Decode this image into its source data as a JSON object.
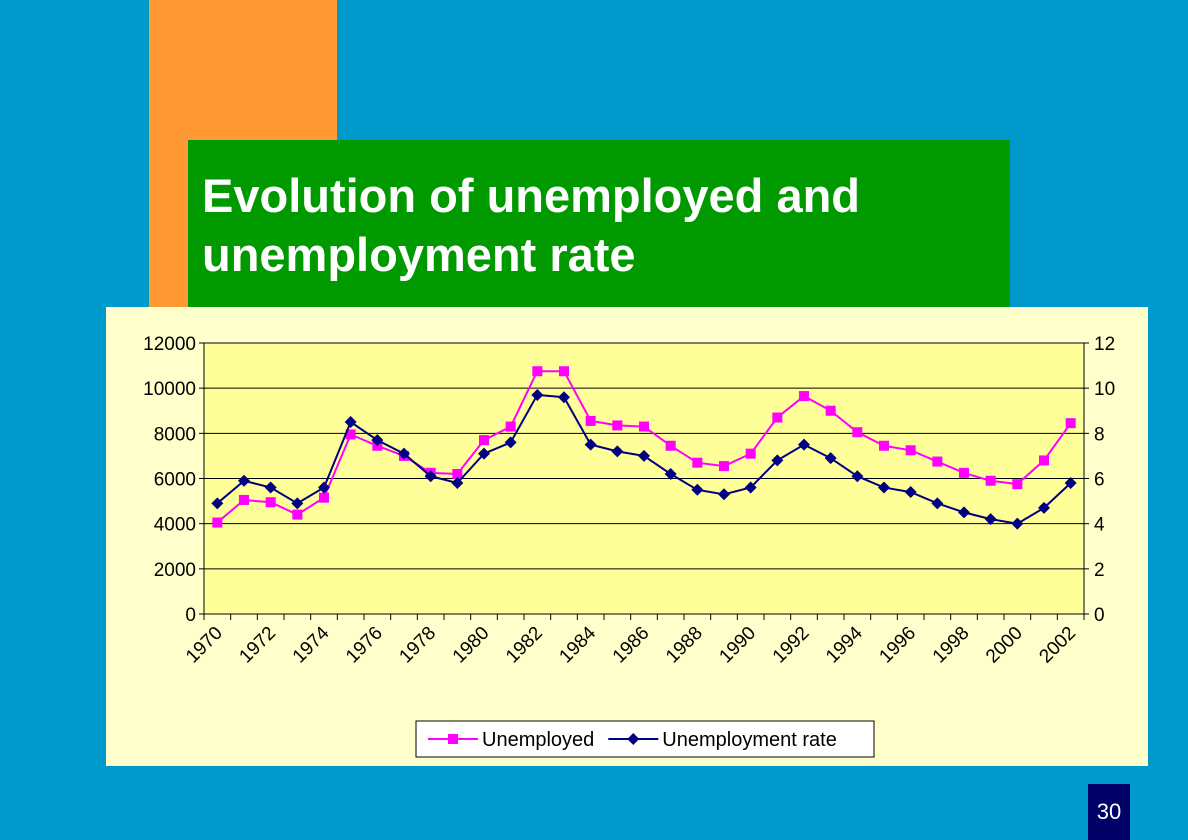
{
  "slide": {
    "title": "Evolution of unemployed and unemployment rate",
    "number": "30",
    "colors": {
      "background": "#0099cc",
      "accent_bar": "#ff9933",
      "title_box": "#009900",
      "chart_panel": "#ffffcc",
      "plot_area": "#ffff99",
      "number_box": "#000066"
    }
  },
  "chart_data": {
    "type": "line",
    "title": "",
    "xlabel": "",
    "ylabel": "",
    "y2label": "",
    "grid": true,
    "legend_position": "bottom",
    "x": [
      1970,
      1971,
      1972,
      1973,
      1974,
      1975,
      1976,
      1977,
      1978,
      1979,
      1980,
      1981,
      1982,
      1983,
      1984,
      1985,
      1986,
      1987,
      1988,
      1989,
      1990,
      1991,
      1992,
      1993,
      1994,
      1995,
      1996,
      1997,
      1998,
      1999,
      2000,
      2001,
      2002
    ],
    "x_tick_labels": [
      "1970",
      "1972",
      "1974",
      "1976",
      "1978",
      "1980",
      "1982",
      "1984",
      "1986",
      "1988",
      "1990",
      "1992",
      "1994",
      "1996",
      "1998",
      "2000",
      "2002"
    ],
    "ylim": [
      0,
      12000
    ],
    "y_ticks": [
      0,
      2000,
      4000,
      6000,
      8000,
      10000,
      12000
    ],
    "y2lim": [
      0,
      12
    ],
    "y2_ticks": [
      0,
      2,
      4,
      6,
      8,
      10,
      12
    ],
    "series": [
      {
        "name": "Unemployed",
        "axis": "left",
        "color": "#ff00ff",
        "marker": "square",
        "values": [
          4050,
          5050,
          4950,
          4400,
          5150,
          7950,
          7450,
          7000,
          6250,
          6200,
          7700,
          8300,
          10750,
          10750,
          8550,
          8350,
          8300,
          7450,
          6700,
          6550,
          7100,
          8700,
          9650,
          9000,
          8050,
          7450,
          7250,
          6750,
          6250,
          5900,
          5750,
          6800,
          8450
        ]
      },
      {
        "name": "Unemployment rate",
        "axis": "right",
        "color": "#000080",
        "marker": "diamond",
        "values": [
          4.9,
          5.9,
          5.6,
          4.9,
          5.6,
          8.5,
          7.7,
          7.1,
          6.1,
          5.8,
          7.1,
          7.6,
          9.7,
          9.6,
          7.5,
          7.2,
          7.0,
          6.2,
          5.5,
          5.3,
          5.6,
          6.8,
          7.5,
          6.9,
          6.1,
          5.6,
          5.4,
          4.9,
          4.5,
          4.2,
          4.0,
          4.7,
          5.8
        ]
      }
    ]
  }
}
